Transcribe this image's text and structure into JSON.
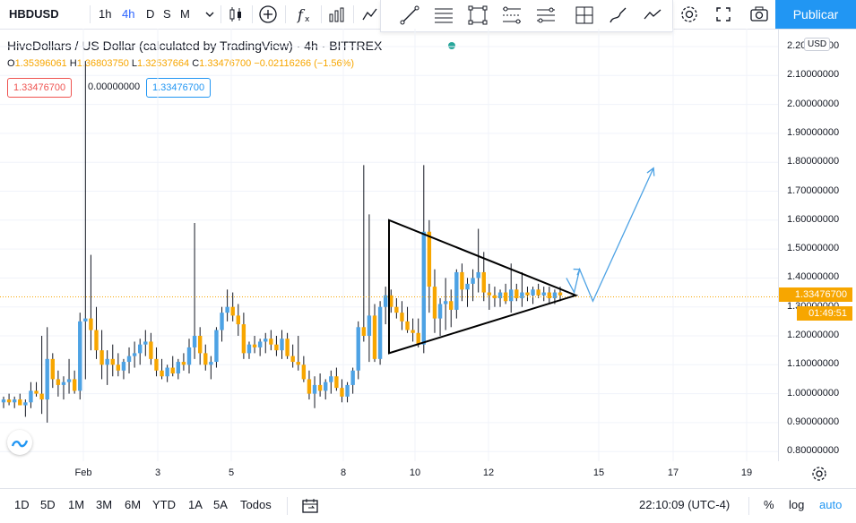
{
  "header": {
    "symbol": "HBDUSD",
    "timeframes": [
      "1h",
      "4h",
      "D",
      "S",
      "M"
    ],
    "active_timeframe": "4h",
    "publish_label": "Publicar"
  },
  "legend": {
    "title": "HiveDollars / US Dollar (calculated by TradingView) · 4h · BITTREX",
    "o_label": "O",
    "o": "1.35396061",
    "h_label": "H",
    "h": "1.36803750",
    "l_label": "L",
    "l": "1.32537664",
    "c_label": "C",
    "c": "1.33476700",
    "change": "−0.02116266 (−1.56%)",
    "bid": "1.33476700",
    "spread": "0.00000000",
    "ask": "1.33476700"
  },
  "price_axis": {
    "currency": "USD",
    "labels": [
      "2.20000000",
      "2.10000000",
      "2.00000000",
      "1.90000000",
      "1.80000000",
      "1.70000000",
      "1.60000000",
      "1.50000000",
      "1.40000000",
      "1.30000000",
      "1.20000000",
      "1.10000000",
      "1.00000000",
      "0.90000000",
      "0.80000000"
    ],
    "current_price": "1.33476700",
    "countdown": "01:49:51"
  },
  "time_axis": {
    "labels": [
      "Feb",
      "3",
      "5",
      "8",
      "10",
      "12",
      "15",
      "17",
      "19"
    ]
  },
  "bottom": {
    "ranges": [
      "1D",
      "5D",
      "1M",
      "3M",
      "6M",
      "YTD",
      "1A",
      "5A",
      "Todos"
    ],
    "clock": "22:10:09 (UTC-4)",
    "percent": "%",
    "log": "log",
    "auto": "auto"
  },
  "colors": {
    "up": "#4da2e4",
    "down": "#f7a600",
    "accent": "#2196f3",
    "live": "#26a69a"
  },
  "chart_data": {
    "type": "candlestick",
    "timeframe": "4h",
    "xlabel": "",
    "ylabel": "",
    "ylim": [
      0.78,
      2.25
    ],
    "x_ticks": [
      "Feb",
      "3",
      "5",
      "8",
      "10",
      "12",
      "15",
      "17",
      "19"
    ],
    "candles": [
      [
        0.97,
        0.99,
        0.95,
        0.98
      ],
      [
        0.98,
        1.0,
        0.96,
        0.97
      ],
      [
        0.97,
        0.99,
        0.95,
        0.98
      ],
      [
        0.98,
        1.0,
        0.96,
        0.96
      ],
      [
        0.96,
        0.98,
        0.92,
        0.97
      ],
      [
        0.97,
        1.04,
        0.95,
        1.01
      ],
      [
        1.01,
        1.04,
        0.99,
        1.0
      ],
      [
        1.0,
        1.2,
        0.93,
        0.98
      ],
      [
        0.98,
        1.23,
        0.9,
        1.12
      ],
      [
        1.12,
        1.14,
        1.02,
        1.05
      ],
      [
        1.05,
        1.08,
        0.99,
        1.03
      ],
      [
        1.03,
        1.06,
        0.98,
        1.04
      ],
      [
        1.04,
        1.12,
        1.0,
        1.05
      ],
      [
        1.05,
        1.08,
        1.0,
        1.01
      ],
      [
        1.01,
        1.28,
        0.98,
        1.25
      ],
      [
        1.25,
        2.15,
        1.05,
        1.26
      ],
      [
        1.26,
        1.48,
        1.15,
        1.22
      ],
      [
        1.22,
        1.3,
        1.12,
        1.15
      ],
      [
        1.15,
        1.22,
        1.05,
        1.1
      ],
      [
        1.1,
        1.15,
        1.03,
        1.12
      ],
      [
        1.12,
        1.17,
        1.06,
        1.1
      ],
      [
        1.1,
        1.14,
        1.06,
        1.08
      ],
      [
        1.08,
        1.12,
        1.05,
        1.11
      ],
      [
        1.11,
        1.16,
        1.07,
        1.13
      ],
      [
        1.13,
        1.18,
        1.09,
        1.14
      ],
      [
        1.14,
        1.19,
        1.1,
        1.17
      ],
      [
        1.17,
        1.22,
        1.13,
        1.18
      ],
      [
        1.18,
        1.21,
        1.1,
        1.12
      ],
      [
        1.12,
        1.16,
        1.06,
        1.08
      ],
      [
        1.08,
        1.12,
        1.05,
        1.06
      ],
      [
        1.06,
        1.1,
        1.04,
        1.09
      ],
      [
        1.09,
        1.13,
        1.06,
        1.07
      ],
      [
        1.07,
        1.12,
        1.05,
        1.11
      ],
      [
        1.11,
        1.14,
        1.08,
        1.1
      ],
      [
        1.1,
        1.19,
        1.07,
        1.16
      ],
      [
        1.16,
        1.59,
        1.12,
        1.2
      ],
      [
        1.2,
        1.23,
        1.1,
        1.14
      ],
      [
        1.14,
        1.17,
        1.08,
        1.1
      ],
      [
        1.1,
        1.13,
        1.05,
        1.11
      ],
      [
        1.11,
        1.23,
        1.09,
        1.22
      ],
      [
        1.22,
        1.3,
        1.18,
        1.28
      ],
      [
        1.28,
        1.36,
        1.25,
        1.3
      ],
      [
        1.3,
        1.35,
        1.25,
        1.27
      ],
      [
        1.27,
        1.31,
        1.2,
        1.24
      ],
      [
        1.24,
        1.28,
        1.12,
        1.14
      ],
      [
        1.14,
        1.18,
        1.12,
        1.17
      ],
      [
        1.17,
        1.2,
        1.14,
        1.16
      ],
      [
        1.16,
        1.19,
        1.13,
        1.18
      ],
      [
        1.18,
        1.21,
        1.14,
        1.19
      ],
      [
        1.19,
        1.22,
        1.15,
        1.17
      ],
      [
        1.17,
        1.2,
        1.13,
        1.15
      ],
      [
        1.15,
        1.22,
        1.12,
        1.19
      ],
      [
        1.19,
        1.21,
        1.12,
        1.13
      ],
      [
        1.13,
        1.17,
        1.09,
        1.11
      ],
      [
        1.11,
        1.2,
        1.08,
        1.1
      ],
      [
        1.1,
        1.13,
        1.04,
        1.05
      ],
      [
        1.05,
        1.08,
        0.98,
        1.0
      ],
      [
        1.0,
        1.06,
        0.95,
        1.03
      ],
      [
        1.03,
        1.07,
        0.99,
        1.01
      ],
      [
        1.01,
        1.05,
        0.98,
        1.04
      ],
      [
        1.04,
        1.08,
        1.0,
        1.06
      ],
      [
        1.06,
        1.09,
        1.01,
        1.02
      ],
      [
        1.02,
        1.05,
        0.97,
        0.99
      ],
      [
        0.99,
        1.04,
        0.97,
        1.03
      ],
      [
        1.03,
        1.09,
        1.0,
        1.08
      ],
      [
        1.08,
        1.25,
        1.05,
        1.23
      ],
      [
        1.23,
        1.79,
        1.18,
        1.2
      ],
      [
        1.2,
        1.62,
        1.11,
        1.27
      ],
      [
        1.27,
        1.31,
        1.11,
        1.12
      ],
      [
        1.12,
        1.32,
        1.1,
        1.3
      ],
      [
        1.3,
        1.37,
        1.24,
        1.34
      ],
      [
        1.34,
        1.36,
        1.28,
        1.3
      ],
      [
        1.3,
        1.33,
        1.26,
        1.28
      ],
      [
        1.28,
        1.32,
        1.22,
        1.25
      ],
      [
        1.25,
        1.3,
        1.21,
        1.22
      ],
      [
        1.22,
        1.26,
        1.18,
        1.21
      ],
      [
        1.21,
        1.26,
        1.16,
        1.17
      ],
      [
        1.17,
        1.79,
        1.14,
        1.56
      ],
      [
        1.56,
        1.6,
        1.28,
        1.37
      ],
      [
        1.37,
        1.43,
        1.21,
        1.26
      ],
      [
        1.26,
        1.33,
        1.2,
        1.31
      ],
      [
        1.31,
        1.4,
        1.22,
        1.32
      ],
      [
        1.32,
        1.36,
        1.23,
        1.29
      ],
      [
        1.29,
        1.43,
        1.26,
        1.42
      ],
      [
        1.42,
        1.45,
        1.32,
        1.36
      ],
      [
        1.36,
        1.4,
        1.3,
        1.38
      ],
      [
        1.38,
        1.43,
        1.32,
        1.4
      ],
      [
        1.4,
        1.57,
        1.35,
        1.42
      ],
      [
        1.42,
        1.49,
        1.32,
        1.35
      ],
      [
        1.35,
        1.38,
        1.29,
        1.34
      ],
      [
        1.34,
        1.37,
        1.3,
        1.33
      ],
      [
        1.33,
        1.36,
        1.3,
        1.35
      ],
      [
        1.35,
        1.38,
        1.31,
        1.32
      ],
      [
        1.32,
        1.45,
        1.28,
        1.36
      ],
      [
        1.36,
        1.38,
        1.32,
        1.33
      ],
      [
        1.33,
        1.42,
        1.3,
        1.35
      ],
      [
        1.35,
        1.37,
        1.32,
        1.34
      ],
      [
        1.34,
        1.37,
        1.31,
        1.36
      ],
      [
        1.36,
        1.38,
        1.33,
        1.34
      ],
      [
        1.34,
        1.37,
        1.32,
        1.35
      ],
      [
        1.35,
        1.37,
        1.31,
        1.33
      ],
      [
        1.33,
        1.36,
        1.31,
        1.35
      ],
      [
        1.35,
        1.37,
        1.32,
        1.34
      ]
    ],
    "annotations": [
      {
        "type": "triangle",
        "points": [
          [
            0.5,
            1.6
          ],
          [
            0.5,
            1.14
          ],
          [
            0.74,
            1.34
          ]
        ]
      },
      {
        "type": "arrow-path",
        "points": [
          [
            0.728,
            1.4
          ],
          [
            0.738,
            1.35
          ],
          [
            0.745,
            1.43
          ],
          [
            0.762,
            1.32
          ],
          [
            0.84,
            1.78
          ]
        ]
      }
    ]
  }
}
